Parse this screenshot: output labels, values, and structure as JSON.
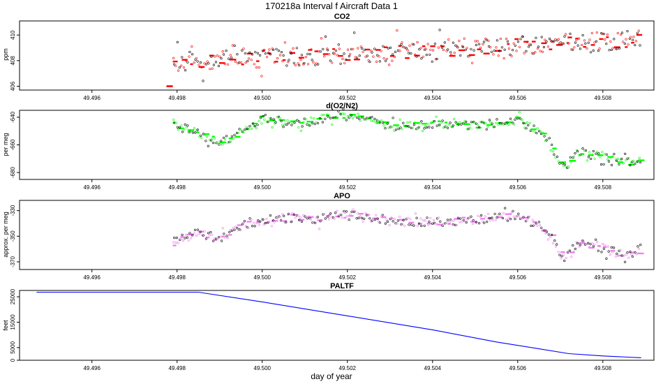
{
  "figure": {
    "title": "170218a   Interval f Aircraft Data 1",
    "xlabel": "day of year"
  },
  "chart_data": [
    {
      "type": "scatter",
      "title": "CO2",
      "ylabel": "ppm",
      "xlim": [
        49.4943,
        49.5092
      ],
      "ylim": [
        405.7,
        411.1
      ],
      "xticks": [
        "49.496",
        "49.498",
        "49.500",
        "49.502",
        "49.504",
        "49.506",
        "49.508"
      ],
      "yticks": [
        "406",
        "408",
        "410"
      ],
      "x_range_data": [
        49.4979,
        49.5089
      ],
      "start_value": 406.0,
      "trend_end_value": 409.6,
      "noise": 0.55,
      "series": [
        {
          "name": "",
          "color": "#ff0000"
        }
      ]
    },
    {
      "type": "scatter",
      "title": "d(O2/N2)",
      "ylabel": "per meg",
      "xlim": [
        49.4943,
        49.5092
      ],
      "ylim": [
        -685,
        -635
      ],
      "xticks": [
        "49.496",
        "49.498",
        "49.500",
        "49.502",
        "49.504",
        "49.506",
        "49.508"
      ],
      "yticks": [
        "-640",
        "-660",
        "-680"
      ],
      "x_range_data": [
        49.4979,
        49.5089
      ],
      "profile_x": [
        49.4979,
        49.4985,
        49.499,
        49.4995,
        49.5,
        49.5008,
        49.5012,
        49.5018,
        49.5025,
        49.503,
        49.504,
        49.505,
        49.506,
        49.5065,
        49.5068,
        49.5071,
        49.5074,
        49.508,
        49.5085,
        49.5089
      ],
      "profile_y": [
        -645,
        -652,
        -658,
        -652,
        -640,
        -645,
        -643,
        -638,
        -642,
        -647,
        -645,
        -646,
        -642,
        -650,
        -662,
        -678,
        -665,
        -668,
        -673,
        -672
      ],
      "noise": 2.2,
      "series": [
        {
          "name": "",
          "color": "#00ff00"
        }
      ]
    },
    {
      "type": "scatter",
      "title": "APO",
      "ylabel": "approx. per meg",
      "xlim": [
        49.4943,
        49.5092
      ],
      "ylim": [
        -376,
        -322
      ],
      "xticks": [
        "49.496",
        "49.498",
        "49.500",
        "49.502",
        "49.504",
        "49.506",
        "49.508"
      ],
      "yticks": [
        "-330",
        "-350",
        "-370"
      ],
      "x_range_data": [
        49.4979,
        49.5089
      ],
      "profile_x": [
        49.4979,
        49.4985,
        49.499,
        49.4995,
        49.5,
        49.5008,
        49.5012,
        49.5018,
        49.5025,
        49.503,
        49.504,
        49.505,
        49.506,
        49.5065,
        49.5068,
        49.5071,
        49.5074,
        49.508,
        49.5085,
        49.5089
      ],
      "profile_y": [
        -355,
        -347,
        -352,
        -342,
        -338,
        -335,
        -338,
        -333,
        -335,
        -338,
        -339,
        -337,
        -333,
        -342,
        -352,
        -369,
        -356,
        -359,
        -365,
        -360
      ],
      "noise": 2.5,
      "series": [
        {
          "name": "",
          "color": "#ee82ee"
        }
      ]
    },
    {
      "type": "line",
      "title": "PALTF",
      "ylabel": "feet",
      "xlim": [
        49.4943,
        49.5092
      ],
      "ylim": [
        0,
        27500
      ],
      "xticks": [
        "49.496",
        "49.498",
        "49.500",
        "49.502",
        "49.504",
        "49.506",
        "49.508"
      ],
      "yticks": [
        "0",
        "5000",
        "15000",
        "25000"
      ],
      "ytick_values": [
        0,
        5000,
        15000,
        25000
      ],
      "x": [
        49.4947,
        49.4985,
        49.5,
        49.502,
        49.504,
        49.5055,
        49.5065,
        49.5072,
        49.508,
        49.5089
      ],
      "y": [
        26800,
        26800,
        23000,
        17500,
        12000,
        7200,
        4500,
        2600,
        1700,
        1000
      ],
      "series": [
        {
          "name": "",
          "color": "#0000ff"
        }
      ]
    }
  ]
}
